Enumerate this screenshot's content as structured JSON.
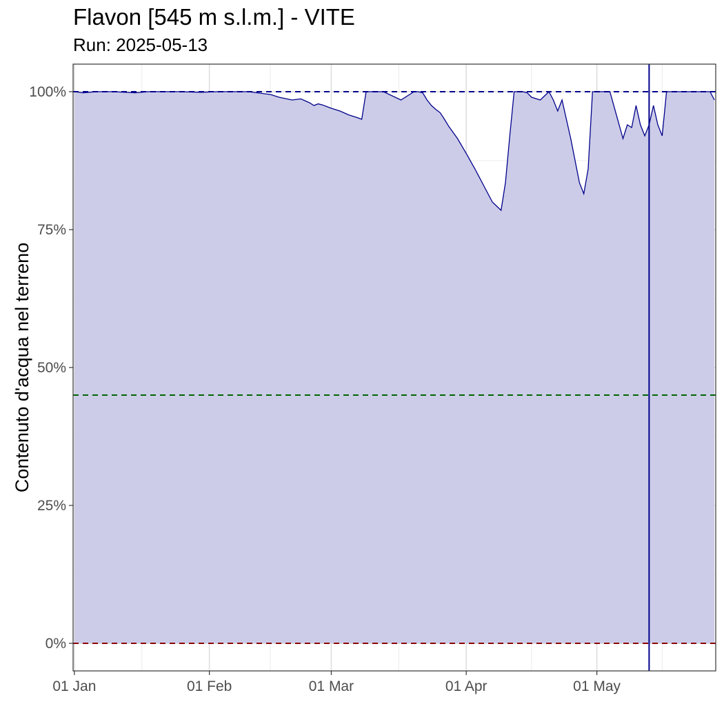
{
  "chart_data": {
    "type": "area",
    "title": "Flavon [545 m s.l.m.] - VITE",
    "subtitle": "Run: 2025-05-13",
    "xlabel": "",
    "ylabel": "Contenuto d'acqua nel terreno",
    "x_range": [
      "2025-01-01",
      "2025-05-28"
    ],
    "ylim": [
      -5,
      105
    ],
    "y_ticks": [
      0,
      25,
      50,
      75,
      100
    ],
    "y_tick_labels": [
      "0%",
      "25%",
      "50%",
      "75%",
      "100%"
    ],
    "x_ticks": [
      "2025-01-01",
      "2025-02-01",
      "2025-03-01",
      "2025-04-01",
      "2025-05-01"
    ],
    "x_tick_labels": [
      "01 Jan",
      "01 Feb",
      "01 Mar",
      "01 Apr",
      "01 May"
    ],
    "grid": true,
    "fill_color": "#cccce8",
    "line_color": "#00008b",
    "reference_lines": [
      {
        "y": 100,
        "color": "#00008b",
        "style": "dashed"
      },
      {
        "y": 45,
        "color": "#006400",
        "style": "dashed"
      },
      {
        "y": 0,
        "color": "#8b0000",
        "style": "dashed"
      }
    ],
    "vertical_line": {
      "x": "2025-05-13",
      "color": "#00008b"
    },
    "series": [
      {
        "x": [
          "2025-01-01",
          "2025-01-03",
          "2025-01-06",
          "2025-01-10",
          "2025-01-15",
          "2025-01-18",
          "2025-01-20",
          "2025-01-25",
          "2025-01-30",
          "2025-02-03",
          "2025-02-06",
          "2025-02-10",
          "2025-02-15",
          "2025-02-17",
          "2025-02-20",
          "2025-02-22",
          "2025-02-24",
          "2025-02-25",
          "2025-02-26",
          "2025-02-27",
          "2025-02-28",
          "2025-03-01",
          "2025-03-03",
          "2025-03-05",
          "2025-03-07",
          "2025-03-08",
          "2025-03-09",
          "2025-03-10",
          "2025-03-13",
          "2025-03-17",
          "2025-03-20",
          "2025-03-21",
          "2025-03-22",
          "2025-03-23",
          "2025-03-24",
          "2025-03-25",
          "2025-03-26",
          "2025-03-27",
          "2025-03-28",
          "2025-03-30",
          "2025-04-01",
          "2025-04-03",
          "2025-04-05",
          "2025-04-07",
          "2025-04-09",
          "2025-04-10",
          "2025-04-11",
          "2025-04-12",
          "2025-04-13",
          "2025-04-14",
          "2025-04-15",
          "2025-04-16",
          "2025-04-18",
          "2025-04-20",
          "2025-04-21",
          "2025-04-22",
          "2025-04-23",
          "2025-04-24",
          "2025-04-25",
          "2025-04-26",
          "2025-04-27",
          "2025-04-28",
          "2025-04-29",
          "2025-04-30",
          "2025-05-01",
          "2025-05-02",
          "2025-05-03",
          "2025-05-04",
          "2025-05-07",
          "2025-05-08",
          "2025-05-09",
          "2025-05-10",
          "2025-05-11",
          "2025-05-12",
          "2025-05-13",
          "2025-05-14",
          "2025-05-15",
          "2025-05-16",
          "2025-05-17",
          "2025-05-18",
          "2025-05-19",
          "2025-05-20",
          "2025-05-21",
          "2025-05-22",
          "2025-05-25",
          "2025-05-27",
          "2025-05-28"
        ],
        "y": [
          100,
          99.8,
          100,
          100,
          99.8,
          100,
          100,
          100,
          99.9,
          100,
          100,
          100,
          99.5,
          99,
          98.5,
          98.7,
          98,
          97.5,
          97.8,
          97.6,
          97.3,
          97,
          96.5,
          95.8,
          95.3,
          95,
          100,
          100,
          100,
          98.5,
          100,
          100,
          99.8,
          98.5,
          97.5,
          96.8,
          96.2,
          95,
          93.7,
          91.5,
          88.8,
          86,
          83,
          80,
          78.5,
          83.5,
          92,
          100,
          100,
          100,
          99.8,
          99,
          98.5,
          100,
          98.5,
          96.5,
          98.5,
          95,
          91.5,
          87.5,
          83.5,
          81.5,
          86,
          100,
          100,
          100,
          100,
          100,
          91.5,
          94,
          93.5,
          97.5,
          94,
          92,
          94,
          97.5,
          94,
          92,
          100,
          100,
          100,
          100,
          100,
          100,
          100,
          100,
          98.5
        ]
      }
    ]
  }
}
